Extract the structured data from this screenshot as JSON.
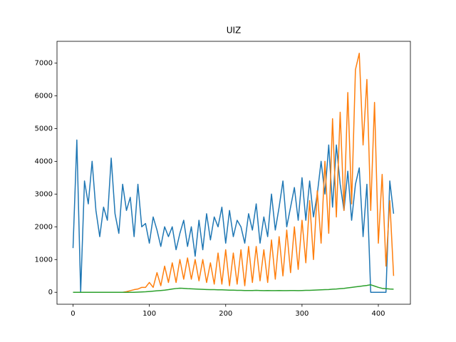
{
  "chart_data": {
    "type": "line",
    "title": "UIZ",
    "x": [
      0,
      5,
      10,
      15,
      20,
      25,
      30,
      35,
      40,
      45,
      50,
      55,
      60,
      65,
      70,
      75,
      80,
      85,
      90,
      95,
      100,
      105,
      110,
      115,
      120,
      125,
      130,
      135,
      140,
      145,
      150,
      155,
      160,
      165,
      170,
      175,
      180,
      185,
      190,
      195,
      200,
      205,
      210,
      215,
      220,
      225,
      230,
      235,
      240,
      245,
      250,
      255,
      260,
      265,
      270,
      275,
      280,
      285,
      290,
      295,
      300,
      305,
      310,
      315,
      320,
      325,
      330,
      335,
      340,
      345,
      350,
      355,
      360,
      365,
      370,
      375,
      380,
      385,
      390,
      395,
      400,
      405,
      410,
      415,
      420
    ],
    "series": [
      {
        "color": "#1f77b4",
        "values": [
          1350,
          4650,
          0,
          3400,
          2700,
          4000,
          2500,
          1700,
          2600,
          2200,
          4100,
          2400,
          1800,
          3300,
          2500,
          2900,
          1700,
          3300,
          2000,
          2100,
          1500,
          2300,
          1900,
          1400,
          2000,
          1700,
          2000,
          1300,
          1800,
          2200,
          1400,
          2000,
          1100,
          2200,
          1300,
          2400,
          1600,
          2300,
          2000,
          2600,
          1500,
          2500,
          1700,
          2200,
          2000,
          1500,
          2400,
          1900,
          2700,
          1500,
          2300,
          1700,
          3000,
          1900,
          2600,
          3400,
          2000,
          2600,
          3200,
          2200,
          3500,
          2200,
          3400,
          2300,
          3000,
          4000,
          3000,
          4500,
          2600,
          4500,
          3300,
          2500,
          3700,
          2200,
          3300,
          3800,
          1700,
          3300,
          0,
          0,
          0,
          0,
          0,
          3400,
          2400
        ]
      },
      {
        "color": "#ff7f0e",
        "values": [
          0,
          0,
          0,
          0,
          0,
          0,
          0,
          0,
          0,
          0,
          0,
          0,
          0,
          0,
          20,
          50,
          80,
          100,
          150,
          150,
          300,
          150,
          600,
          200,
          800,
          300,
          900,
          300,
          1000,
          400,
          1050,
          400,
          1000,
          350,
          1000,
          300,
          900,
          250,
          1200,
          250,
          1300,
          200,
          1200,
          250,
          1300,
          200,
          1400,
          300,
          1400,
          350,
          1300,
          300,
          1600,
          400,
          1700,
          500,
          1900,
          600,
          2000,
          700,
          2200,
          900,
          2800,
          1000,
          3100,
          1500,
          4000,
          1800,
          5300,
          2300,
          5500,
          2500,
          6100,
          2700,
          6800,
          7300,
          4500,
          6500,
          2500,
          5800,
          1500,
          3600,
          800,
          2800,
          500
        ]
      },
      {
        "color": "#2ca02c",
        "values": [
          0,
          0,
          0,
          0,
          0,
          0,
          0,
          0,
          0,
          0,
          0,
          0,
          0,
          0,
          0,
          0,
          0,
          5,
          10,
          15,
          25,
          35,
          45,
          55,
          65,
          80,
          100,
          115,
          125,
          120,
          110,
          105,
          100,
          95,
          90,
          85,
          80,
          80,
          75,
          75,
          70,
          65,
          65,
          60,
          60,
          55,
          55,
          55,
          60,
          55,
          50,
          55,
          50,
          50,
          55,
          50,
          50,
          55,
          55,
          50,
          55,
          60,
          60,
          65,
          70,
          75,
          80,
          85,
          95,
          100,
          110,
          120,
          135,
          150,
          165,
          180,
          195,
          210,
          230,
          190,
          150,
          120,
          110,
          100,
          95
        ]
      }
    ],
    "xlim": [
      -21,
      442
    ],
    "ylim": [
      -365,
      7665
    ],
    "xticks": [
      0,
      100,
      200,
      300,
      400
    ],
    "yticks": [
      0,
      1000,
      2000,
      3000,
      4000,
      5000,
      6000,
      7000
    ]
  }
}
